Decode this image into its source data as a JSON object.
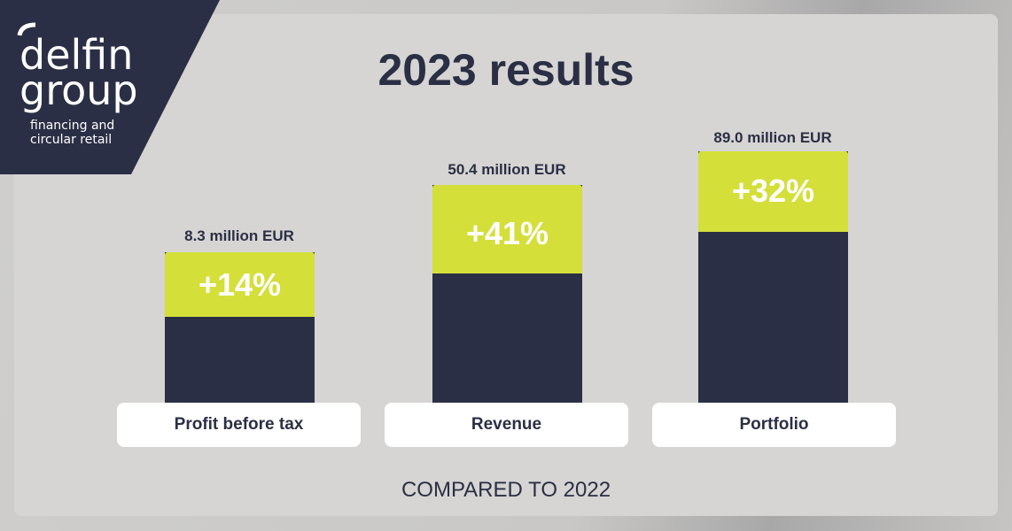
{
  "logo": {
    "line1": "delfin",
    "line2": "group",
    "tagline1": "financing and",
    "tagline2": "circular retail"
  },
  "title": "2023 results",
  "items": [
    {
      "amount": "8.3 million EUR",
      "change": "+14%",
      "label": "Profit before tax"
    },
    {
      "amount": "50.4 million EUR",
      "change": "+41%",
      "label": "Revenue"
    },
    {
      "amount": "89.0 million EUR",
      "change": "+32%",
      "label": "Portfolio"
    }
  ],
  "footer": "COMPARED TO 2022"
}
